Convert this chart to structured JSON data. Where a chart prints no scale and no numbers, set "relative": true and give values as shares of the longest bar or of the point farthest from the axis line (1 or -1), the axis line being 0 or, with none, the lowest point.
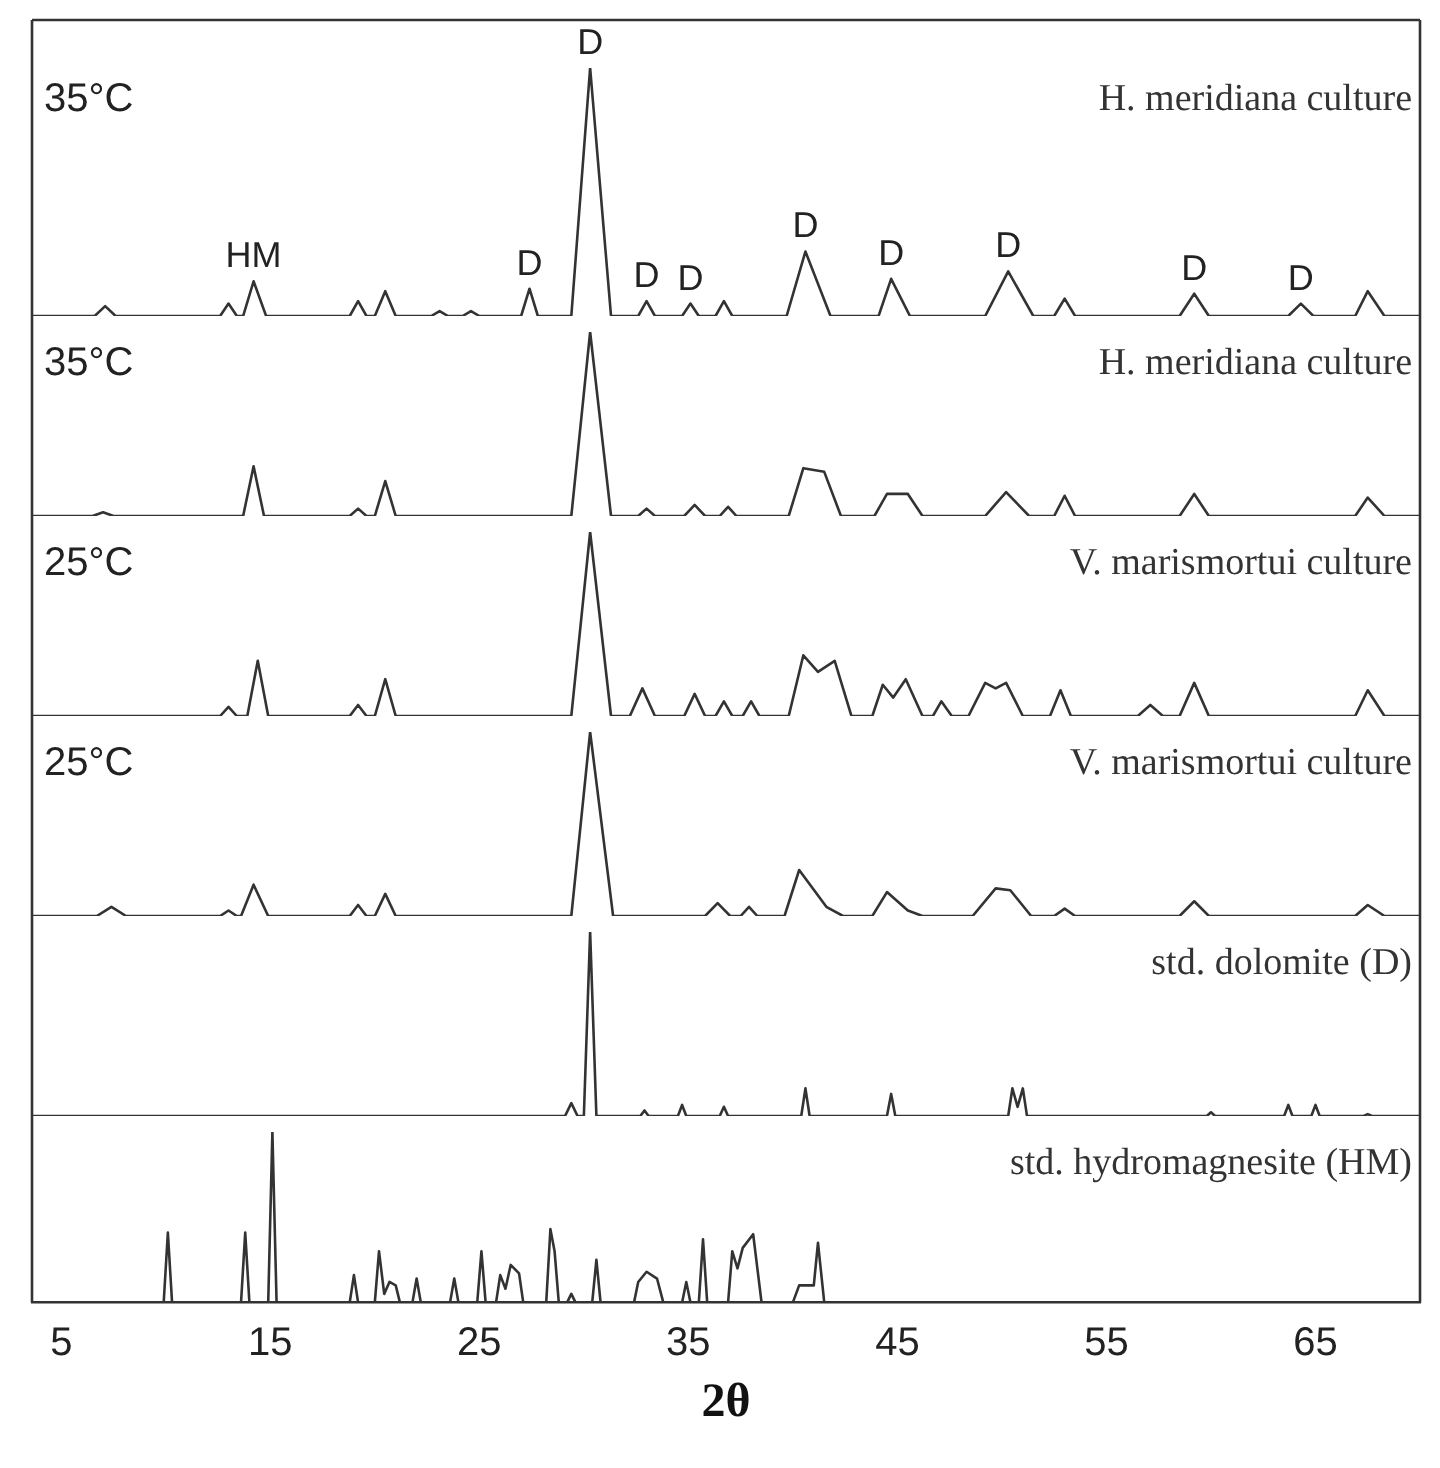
{
  "chart_data": [
    {
      "type": "line",
      "relative": true,
      "title": "35°C",
      "xlim": [
        3.6,
        70
      ],
      "tick_labels": false,
      "marker": "none",
      "line_style": "solid",
      "annotations": [
        {
          "text": "HM",
          "x": 14.2,
          "y": 0.14
        },
        {
          "text": "D",
          "x": 27.4,
          "y": 0.11
        },
        {
          "text": "D",
          "x": 30.3,
          "y": 1
        },
        {
          "text": "D",
          "x": 33.0,
          "y": 0.06
        },
        {
          "text": "D",
          "x": 35.1,
          "y": 0.05
        },
        {
          "text": "D",
          "x": 40.6,
          "y": 0.26
        },
        {
          "text": "D",
          "x": 44.7,
          "y": 0.15
        },
        {
          "text": "D",
          "x": 50.3,
          "y": 0.18
        },
        {
          "text": "D",
          "x": 59.2,
          "y": 0.09
        },
        {
          "text": "D",
          "x": 64.3,
          "y": 0.05
        }
      ],
      "series": [
        {
          "name": "H. meridiana culture",
          "color": "#333333",
          "x": [
            3.6,
            6.6,
            7.1,
            7.6,
            12.6,
            13.0,
            13.4,
            13.7,
            14.2,
            14.8,
            18.8,
            19.2,
            19.6,
            20.0,
            20.5,
            21.0,
            22.7,
            23.1,
            23.5,
            24.2,
            24.6,
            25.0,
            27.0,
            27.4,
            27.8,
            29.4,
            30.3,
            31.3,
            32.6,
            33.0,
            33.4,
            34.7,
            35.1,
            35.5,
            36.3,
            36.7,
            37.1,
            39.7,
            40.6,
            41.8,
            44.1,
            44.7,
            45.6,
            49.2,
            50.3,
            51.5,
            52.5,
            53.0,
            53.5,
            58.5,
            59.2,
            59.9,
            63.7,
            64.3,
            64.9,
            66.9,
            67.5,
            68.3,
            70
          ],
          "values": [
            0,
            0,
            0.04,
            0,
            0,
            0.05,
            0,
            0,
            0.14,
            0,
            0,
            0.06,
            0,
            0,
            0.1,
            0,
            0,
            0.02,
            0,
            0,
            0.02,
            0,
            0,
            0.11,
            0,
            0,
            1,
            0,
            0,
            0.06,
            0,
            0,
            0.05,
            0,
            0,
            0.06,
            0,
            0,
            0.26,
            0,
            0,
            0.15,
            0,
            0,
            0.18,
            0,
            0,
            0.07,
            0,
            0,
            0.09,
            0,
            0,
            0.05,
            0,
            0,
            0.1,
            0,
            0
          ]
        }
      ]
    },
    {
      "type": "line",
      "relative": true,
      "title": "35°C",
      "xlim": [
        3.6,
        70
      ],
      "tick_labels": false,
      "marker": "none",
      "line_style": "solid",
      "series": [
        {
          "name": "H. meridiana culture",
          "color": "#333333",
          "x": [
            3.6,
            6.5,
            7.0,
            7.5,
            13.7,
            14.2,
            14.7,
            18.8,
            19.2,
            19.6,
            20.0,
            20.5,
            21.0,
            29.4,
            30.3,
            31.3,
            32.6,
            33.0,
            33.4,
            34.8,
            35.3,
            35.8,
            36.5,
            36.9,
            37.3,
            39.8,
            40.5,
            41.5,
            42.3,
            43.9,
            44.5,
            45.5,
            46.2,
            49.2,
            50.2,
            51.3,
            52.5,
            53.0,
            53.5,
            58.5,
            59.2,
            59.9,
            66.9,
            67.5,
            68.3,
            70
          ],
          "values": [
            0,
            0,
            0.02,
            0,
            0,
            0.27,
            0,
            0,
            0.04,
            0,
            0,
            0.19,
            0,
            0,
            1,
            0,
            0,
            0.04,
            0,
            0,
            0.06,
            0,
            0,
            0.05,
            0,
            0,
            0.26,
            0.24,
            0,
            0,
            0.12,
            0.12,
            0,
            0,
            0.13,
            0,
            0,
            0.11,
            0,
            0,
            0.12,
            0,
            0,
            0.1,
            0,
            0
          ]
        }
      ]
    },
    {
      "type": "line",
      "relative": true,
      "title": "25°C",
      "xlim": [
        3.6,
        70
      ],
      "tick_labels": false,
      "marker": "none",
      "line_style": "solid",
      "series": [
        {
          "name": "V. marismortui culture",
          "color": "#333333",
          "x": [
            3.6,
            12.6,
            13.0,
            13.4,
            13.9,
            14.4,
            14.9,
            18.8,
            19.2,
            19.6,
            20.0,
            20.5,
            21.0,
            29.4,
            30.3,
            31.3,
            32.2,
            32.8,
            33.4,
            34.8,
            35.3,
            35.8,
            36.3,
            36.7,
            37.1,
            37.6,
            38.0,
            38.4,
            39.8,
            40.5,
            41.2,
            42.0,
            42.8,
            43.8,
            44.3,
            44.8,
            45.4,
            46.2,
            46.7,
            47.1,
            47.6,
            48.4,
            49.2,
            49.7,
            50.2,
            51.0,
            52.3,
            52.8,
            53.3,
            56.5,
            57.1,
            57.7,
            58.5,
            59.2,
            59.9,
            66.9,
            67.5,
            68.3,
            70
          ],
          "values": [
            0,
            0,
            0.05,
            0,
            0,
            0.3,
            0,
            0,
            0.06,
            0,
            0,
            0.2,
            0,
            0,
            1,
            0,
            0,
            0.15,
            0,
            0,
            0.12,
            0,
            0,
            0.08,
            0,
            0,
            0.08,
            0,
            0,
            0.33,
            0.24,
            0.3,
            0,
            0,
            0.17,
            0.1,
            0.2,
            0,
            0,
            0.08,
            0,
            0,
            0.18,
            0.15,
            0.18,
            0,
            0,
            0.14,
            0,
            0,
            0.06,
            0,
            0,
            0.18,
            0,
            0,
            0.14,
            0,
            0
          ]
        }
      ]
    },
    {
      "type": "line",
      "relative": true,
      "title": "25°C",
      "xlim": [
        3.6,
        70
      ],
      "tick_labels": false,
      "marker": "none",
      "line_style": "solid",
      "series": [
        {
          "name": "V. marismortui culture",
          "color": "#333333",
          "x": [
            3.6,
            6.7,
            7.4,
            8.1,
            12.6,
            13.0,
            13.4,
            13.6,
            14.2,
            14.9,
            18.8,
            19.2,
            19.6,
            20.0,
            20.5,
            21.0,
            29.4,
            30.3,
            31.4,
            35.8,
            36.4,
            37.0,
            37.5,
            37.9,
            38.3,
            39.6,
            40.3,
            41.6,
            42.4,
            43.8,
            44.5,
            45.5,
            46.2,
            48.6,
            49.7,
            50.4,
            51.4,
            52.5,
            53.0,
            53.5,
            58.5,
            59.2,
            59.9,
            66.9,
            67.5,
            68.3,
            70
          ],
          "values": [
            0,
            0,
            0.05,
            0,
            0,
            0.03,
            0,
            0,
            0.17,
            0,
            0,
            0.06,
            0,
            0,
            0.12,
            0,
            0,
            1,
            0,
            0,
            0.07,
            0,
            0,
            0.05,
            0,
            0,
            0.25,
            0.05,
            0,
            0,
            0.13,
            0.03,
            0,
            0,
            0.15,
            0.14,
            0,
            0,
            0.04,
            0,
            0,
            0.08,
            0,
            0,
            0.06,
            0,
            0
          ]
        }
      ]
    },
    {
      "type": "line",
      "relative": true,
      "xlim": [
        3.6,
        70
      ],
      "tick_labels": false,
      "marker": "none",
      "line_style": "solid",
      "series": [
        {
          "name": "std. dolomite (D)",
          "color": "#333333",
          "x": [
            3.6,
            29.1,
            29.4,
            29.7,
            30.0,
            30.3,
            30.6,
            32.7,
            32.9,
            33.1,
            34.5,
            34.7,
            34.9,
            36.5,
            36.7,
            36.9,
            40.4,
            40.6,
            40.8,
            44.5,
            44.7,
            44.9,
            50.3,
            50.5,
            50.75,
            51.0,
            51.2,
            59.8,
            60.0,
            60.2,
            63.5,
            63.7,
            63.9,
            64.8,
            65.0,
            65.2,
            67.3,
            67.5,
            67.7,
            70
          ],
          "values": [
            0,
            0,
            0.07,
            0,
            0,
            1,
            0,
            0,
            0.03,
            0,
            0,
            0.06,
            0,
            0,
            0.05,
            0,
            0,
            0.15,
            0,
            0,
            0.12,
            0,
            0,
            0.15,
            0.05,
            0.15,
            0,
            0,
            0.02,
            0,
            0,
            0.06,
            0,
            0,
            0.06,
            0,
            0,
            0.01,
            0,
            0
          ]
        }
      ]
    },
    {
      "type": "line",
      "relative": true,
      "xlim": [
        3.6,
        70
      ],
      "xticks": [
        5,
        15,
        25,
        35,
        45,
        55,
        65
      ],
      "xlabel": "2θ",
      "tick_labels": "x",
      "marker": "none",
      "line_style": "solid",
      "series": [
        {
          "name": "std. hydromagnesite (HM)",
          "color": "#333333",
          "x": [
            3.6,
            9.9,
            10.1,
            10.3,
            13.6,
            13.8,
            14.0,
            14.9,
            15.1,
            15.3,
            18.8,
            19.0,
            19.2,
            20.0,
            20.2,
            20.45,
            20.7,
            21.0,
            21.2,
            21.8,
            22.0,
            22.2,
            23.6,
            23.8,
            24.0,
            24.9,
            25.1,
            25.3,
            25.8,
            26.0,
            26.25,
            26.5,
            26.9,
            27.1,
            28.2,
            28.4,
            28.6,
            28.8,
            29.2,
            29.4,
            29.6,
            30.4,
            30.6,
            30.8,
            32.4,
            32.6,
            33.0,
            33.5,
            33.8,
            34.7,
            34.9,
            35.1,
            35.5,
            35.7,
            35.9,
            36.9,
            37.1,
            37.35,
            37.6,
            38.1,
            38.5,
            40.0,
            40.3,
            41.0,
            41.2,
            41.5,
            42.0
          ],
          "values": [
            0,
            0,
            0.41,
            0,
            0,
            0.41,
            0,
            0,
            1,
            0,
            0,
            0.16,
            0,
            0,
            0.3,
            0.05,
            0.12,
            0.1,
            0,
            0,
            0.14,
            0,
            0,
            0.14,
            0,
            0,
            0.3,
            0,
            0,
            0.16,
            0.08,
            0.22,
            0.17,
            0,
            0,
            0.43,
            0.3,
            0,
            0,
            0.05,
            0,
            0,
            0.25,
            0,
            0,
            0.12,
            0.18,
            0.14,
            0,
            0,
            0.12,
            0,
            0,
            0.37,
            0,
            0,
            0.3,
            0.2,
            0.32,
            0.4,
            0,
            0,
            0.1,
            0.1,
            0.35,
            0,
            0
          ]
        }
      ]
    }
  ]
}
